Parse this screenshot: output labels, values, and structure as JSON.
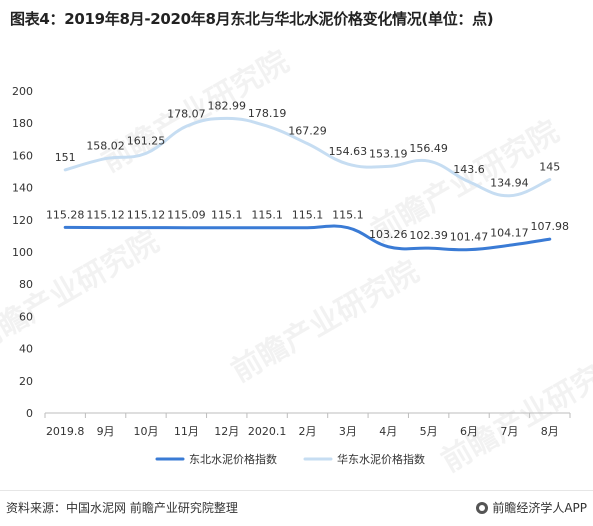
{
  "header": {
    "title": "图表4：2019年8月-2020年8月东北与华北水泥价格变化情况(单位：点)"
  },
  "footer": {
    "source": "资料来源：中国水泥网 前瞻产业研究院整理",
    "brand": "前瞻经济学人APP",
    "brand_icon": "qianzhan-logo-icon"
  },
  "watermark": {
    "text": "前瞻产业研究院"
  },
  "chart_data": {
    "type": "line",
    "categories": [
      "2019.8",
      "9月",
      "10月",
      "11月",
      "12月",
      "2020.1",
      "2月",
      "3月",
      "4月",
      "5月",
      "6月",
      "7月",
      "8月"
    ],
    "ylim": [
      0,
      200
    ],
    "yticks": [
      0,
      20,
      40,
      60,
      80,
      100,
      120,
      140,
      160,
      180,
      200
    ],
    "grid": false,
    "legend_position": "bottom",
    "title": "",
    "xlabel": "",
    "ylabel": "",
    "series": [
      {
        "name": "东北水泥价格指数",
        "color": "#3a7bd5",
        "values": [
          115.28,
          115.12,
          115.12,
          115.09,
          115.1,
          115.1,
          115.1,
          115.1,
          103.26,
          102.39,
          101.47,
          104.17,
          107.98
        ],
        "labels": [
          "115.28",
          "115.12",
          "115.12",
          "115.09",
          "115.1",
          "115.1",
          "115.1",
          "115.1",
          "103.26",
          "102.39",
          "101.47",
          "104.17",
          "107.98"
        ]
      },
      {
        "name": "华东水泥价格指数",
        "color": "#c6ddf2",
        "values": [
          151,
          158.02,
          161.25,
          178.07,
          182.99,
          178.19,
          167.29,
          154.63,
          153.19,
          156.49,
          143.6,
          134.94,
          145
        ],
        "labels": [
          "151",
          "158.02",
          "161.25",
          "178.07",
          "182.99",
          "178.19",
          "167.29",
          "154.63",
          "153.19",
          "156.49",
          "143.6",
          "134.94",
          "145"
        ]
      }
    ]
  }
}
